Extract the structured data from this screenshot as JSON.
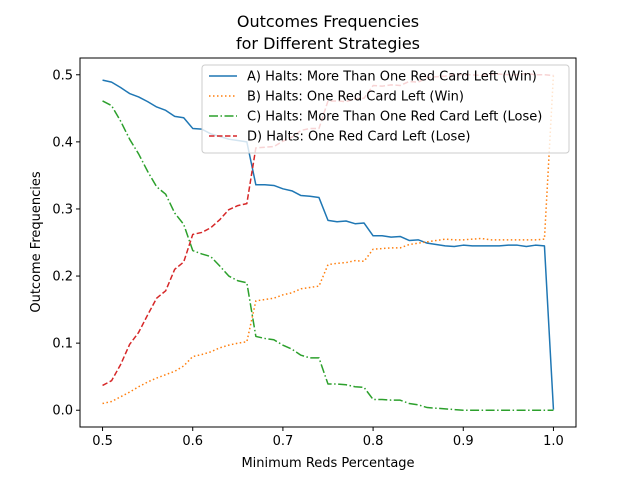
{
  "chart_data": {
    "type": "line",
    "title": "Outcomes Frequencies\nfor Different Strategies",
    "title_lines": [
      "Outcomes Frequencies",
      "for Different Strategies"
    ],
    "xlabel": "Minimum Reds Percentage",
    "ylabel": "Outcome Frequencies",
    "xlim": [
      0.475,
      1.025
    ],
    "ylim": [
      -0.025,
      0.525
    ],
    "xticks": [
      0.5,
      0.6,
      0.7,
      0.8,
      0.9,
      1.0
    ],
    "xtick_labels": [
      "0.5",
      "0.6",
      "0.7",
      "0.8",
      "0.9",
      "1.0"
    ],
    "yticks": [
      0.0,
      0.1,
      0.2,
      0.3,
      0.4,
      0.5
    ],
    "ytick_labels": [
      "0.0",
      "0.1",
      "0.2",
      "0.3",
      "0.4",
      "0.5"
    ],
    "grid": false,
    "legend_position": "top-right",
    "x": [
      0.5,
      0.51,
      0.52,
      0.53,
      0.54,
      0.55,
      0.56,
      0.57,
      0.58,
      0.59,
      0.6,
      0.61,
      0.62,
      0.63,
      0.64,
      0.65,
      0.66,
      0.67,
      0.68,
      0.69,
      0.7,
      0.71,
      0.72,
      0.73,
      0.74,
      0.75,
      0.76,
      0.77,
      0.78,
      0.79,
      0.8,
      0.81,
      0.82,
      0.83,
      0.84,
      0.85,
      0.86,
      0.87,
      0.88,
      0.89,
      0.9,
      0.91,
      0.92,
      0.93,
      0.94,
      0.95,
      0.96,
      0.97,
      0.98,
      0.99,
      1.0
    ],
    "series": [
      {
        "name": "A) Halts: More Than One Red Card Left (Win)",
        "color": "#1f77b4",
        "style": "solid",
        "values": [
          0.492,
          0.489,
          0.481,
          0.472,
          0.467,
          0.46,
          0.452,
          0.447,
          0.438,
          0.436,
          0.42,
          0.419,
          0.412,
          0.408,
          0.404,
          0.402,
          0.4,
          0.336,
          0.336,
          0.335,
          0.33,
          0.327,
          0.32,
          0.319,
          0.317,
          0.283,
          0.281,
          0.282,
          0.278,
          0.279,
          0.26,
          0.26,
          0.258,
          0.259,
          0.253,
          0.254,
          0.249,
          0.247,
          0.245,
          0.244,
          0.246,
          0.245,
          0.245,
          0.245,
          0.245,
          0.246,
          0.246,
          0.244,
          0.246,
          0.245,
          0.001
        ]
      },
      {
        "name": "B) Halts: One Red Card Left (Win)",
        "color": "#ff7f0e",
        "style": "dotted",
        "values": [
          0.01,
          0.013,
          0.02,
          0.027,
          0.035,
          0.042,
          0.048,
          0.053,
          0.058,
          0.066,
          0.08,
          0.083,
          0.087,
          0.093,
          0.097,
          0.1,
          0.102,
          0.163,
          0.165,
          0.167,
          0.172,
          0.175,
          0.181,
          0.183,
          0.185,
          0.217,
          0.219,
          0.22,
          0.223,
          0.222,
          0.24,
          0.241,
          0.242,
          0.242,
          0.247,
          0.249,
          0.251,
          0.253,
          0.255,
          0.254,
          0.254,
          0.255,
          0.256,
          0.254,
          0.254,
          0.254,
          0.254,
          0.254,
          0.254,
          0.255,
          0.5
        ]
      },
      {
        "name": "C) Halts: More Than One Red Card Left (Lose)",
        "color": "#2ca02c",
        "style": "dashdot",
        "values": [
          0.461,
          0.454,
          0.431,
          0.404,
          0.382,
          0.356,
          0.333,
          0.322,
          0.294,
          0.277,
          0.238,
          0.233,
          0.229,
          0.215,
          0.2,
          0.193,
          0.19,
          0.11,
          0.107,
          0.105,
          0.097,
          0.091,
          0.082,
          0.078,
          0.078,
          0.039,
          0.039,
          0.038,
          0.035,
          0.034,
          0.016,
          0.016,
          0.015,
          0.015,
          0.01,
          0.008,
          0.004,
          0.003,
          0.002,
          0.001,
          0.0,
          0.0,
          0.0,
          0.0,
          0.0,
          0.0,
          0.0,
          0.0,
          0.0,
          0.0,
          0.0
        ]
      },
      {
        "name": "D) Halts: One Red Card Left (Lose)",
        "color": "#d62728",
        "style": "dashed",
        "values": [
          0.037,
          0.044,
          0.068,
          0.098,
          0.116,
          0.142,
          0.167,
          0.178,
          0.21,
          0.221,
          0.262,
          0.265,
          0.272,
          0.284,
          0.299,
          0.305,
          0.308,
          0.391,
          0.392,
          0.393,
          0.401,
          0.407,
          0.417,
          0.42,
          0.42,
          0.461,
          0.461,
          0.46,
          0.464,
          0.465,
          0.484,
          0.483,
          0.485,
          0.484,
          0.49,
          0.489,
          0.496,
          0.497,
          0.498,
          0.501,
          0.5,
          0.5,
          0.499,
          0.501,
          0.501,
          0.5,
          0.5,
          0.502,
          0.5,
          0.5,
          0.499
        ]
      }
    ]
  }
}
